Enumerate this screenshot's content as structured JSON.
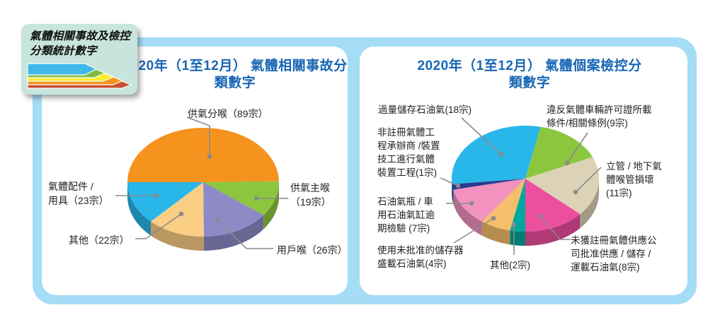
{
  "badge": {
    "title": "氣體相關事故及檢控\n分類統計數字"
  },
  "colors": {
    "frame_blue": "#a5dcf6",
    "badge_bg": "#c7e5dc",
    "title_blue": "#1866b4",
    "leader_gray": "#8a8a8a",
    "arrow_blue": "#3fb8e8",
    "arrow_green": "#7dbe40",
    "arrow_yellow": "#f9ed32",
    "arrow_orange": "#f7941e",
    "arrow_red": "#c94f32"
  },
  "chart_data": [
    {
      "type": "pie",
      "style": "3d",
      "title": "2020年（1至12月）\n氣體相關事故分類數字",
      "unit": "宗",
      "total": 179,
      "start_angle_deg": 180,
      "legend_position": "around",
      "slices": [
        {
          "label": "供氣分喉",
          "value": 89,
          "display": "供氣分喉（89宗）",
          "color": "#f6921e"
        },
        {
          "label": "供氣主喉",
          "value": 19,
          "display": "供氣主喉\n（19宗）",
          "color": "#8cc63f"
        },
        {
          "label": "用戶喉",
          "value": 26,
          "display": "用戶喉（26宗）",
          "color": "#8e8ac8"
        },
        {
          "label": "其他",
          "value": 22,
          "display": "其他（22宗）",
          "color": "#fbce85"
        },
        {
          "label": "氣體配件／用具",
          "value": 23,
          "display": "氣體配件 /\n用具（23宗）",
          "color": "#29b7ea"
        }
      ]
    },
    {
      "type": "pie",
      "style": "3d",
      "title": "2020年（1至12月）\n氣體個案檢控分類數字",
      "unit": "宗",
      "total": 60,
      "start_angle_deg": 174,
      "legend_position": "around",
      "slices": [
        {
          "label": "過量儲存石油氣",
          "value": 18,
          "display": "過量儲存石油氣(18宗)",
          "color": "#29b7ea"
        },
        {
          "label": "違反氣體車輛許可證所載條件/相關條例",
          "value": 9,
          "display": "違反氣體車輛許可證所載\n條件/相關條例(9宗)",
          "color": "#8cc63f"
        },
        {
          "label": "立管／地下氣體喉管損壞",
          "value": 11,
          "display": "立管 / 地下氣\n體喉管損壞\n(11宗)",
          "color": "#dcd2b6"
        },
        {
          "label": "未獲註冊氣體供應公司批准供應/儲存/運載石油氣",
          "value": 8,
          "display": "未獲註冊氣體供應公\n司批准供應 / 儲存 /\n運載石油氣(8宗)",
          "color": "#ec4f9e"
        },
        {
          "label": "其他",
          "value": 2,
          "display": "其他(2宗)",
          "color": "#00a79d"
        },
        {
          "label": "使用未批准的儲存器盛載石油氣",
          "value": 4,
          "display": "使用未批准的儲存器\n盛載石油氣(4宗)",
          "color": "#f4be6b"
        },
        {
          "label": "石油氣瓶／車用石油氣缸逾期檢驗",
          "value": 7,
          "display": "石油氣瓶 / 車\n用石油氣缸逾\n期檢驗 (7宗)",
          "color": "#f192bf"
        },
        {
          "label": "非註冊氣體工程承辦商/裝置技工進行氣體裝置工程",
          "value": 1,
          "display": "非註冊氣體工\n程承辦商 /裝置\n技工進行氣體\n裝置工程(1宗)",
          "color": "#2b3990"
        }
      ]
    }
  ]
}
